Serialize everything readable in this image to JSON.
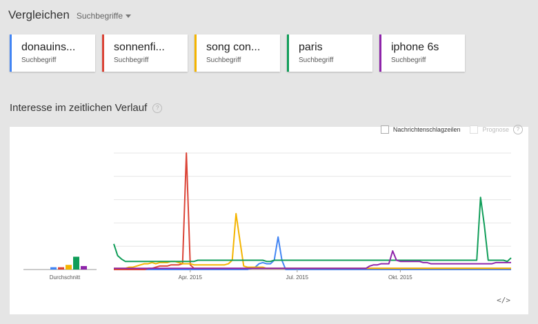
{
  "header": {
    "title": "Vergleichen",
    "dropdown_label": "Suchbegriffe"
  },
  "terms": [
    {
      "label": "donauins...",
      "sub": "Suchbegriff",
      "color": "#4285f4"
    },
    {
      "label": "sonnenfi...",
      "sub": "Suchbegriff",
      "color": "#db4437"
    },
    {
      "label": "song con...",
      "sub": "Suchbegriff",
      "color": "#f4b400"
    },
    {
      "label": "paris",
      "sub": "Suchbegriff",
      "color": "#0f9d58"
    },
    {
      "label": "iphone 6s",
      "sub": "Suchbegriff",
      "color": "#8e24aa"
    }
  ],
  "section": {
    "title": "Interesse im zeitlichen Verlauf",
    "help": "?"
  },
  "options": {
    "news": "Nachrichtenschlagzeilen",
    "forecast": "Prognose",
    "help": "?"
  },
  "embed_icon": "</>",
  "chart_data": {
    "type": "line",
    "ylim": [
      0,
      100
    ],
    "grid": true,
    "x_tick_labels": [
      {
        "label": "Apr. 2015",
        "index": 20
      },
      {
        "label": "Jul. 2015",
        "index": 48
      },
      {
        "label": "Okt. 2015",
        "index": 75
      }
    ],
    "average": {
      "label": "Durchschnitt",
      "values": [
        2,
        2,
        4,
        11,
        3
      ]
    },
    "series": [
      {
        "color": "#4285f4",
        "values": [
          0,
          0,
          0,
          0,
          0,
          0,
          0,
          0,
          0,
          0,
          0,
          0,
          0,
          0,
          0,
          0,
          0,
          0,
          0,
          0,
          0,
          0,
          0,
          0,
          0,
          0,
          0,
          0,
          0,
          0,
          0,
          0,
          0,
          0,
          0,
          0,
          1,
          2,
          5,
          6,
          5,
          5,
          8,
          28,
          8,
          0,
          0,
          0,
          0,
          0,
          0,
          0,
          0,
          0,
          0,
          0,
          0,
          0,
          0,
          0,
          0,
          0,
          0,
          0,
          0,
          0,
          0,
          0,
          0,
          0,
          0,
          0,
          0,
          0,
          0,
          0,
          0,
          0,
          0,
          0,
          0,
          0,
          0,
          0,
          0,
          0,
          0,
          0,
          0,
          0,
          0,
          0,
          0,
          0,
          0,
          0,
          0,
          0,
          0,
          0,
          0,
          0,
          0,
          0,
          0
        ]
      },
      {
        "color": "#db4437",
        "values": [
          0,
          0,
          0,
          0,
          0,
          0,
          0,
          0,
          0,
          1,
          1,
          2,
          3,
          3,
          3,
          4,
          4,
          4,
          5,
          100,
          4,
          1,
          1,
          1,
          1,
          1,
          1,
          1,
          1,
          1,
          1,
          1,
          1,
          1,
          1,
          1,
          1,
          1,
          1,
          1,
          1,
          1,
          1,
          1,
          1,
          1,
          1,
          1,
          1,
          1,
          1,
          1,
          1,
          1,
          1,
          1,
          1,
          1,
          1,
          1,
          1,
          1,
          1,
          1,
          1,
          1,
          1,
          1,
          1,
          1,
          1,
          1,
          1,
          1,
          1,
          1,
          1,
          1,
          1,
          1,
          1,
          1,
          1,
          1,
          1,
          1,
          1,
          1,
          1,
          1,
          1,
          1,
          1,
          1,
          1,
          1,
          1,
          1,
          1,
          1,
          1,
          1,
          1,
          1,
          1
        ]
      },
      {
        "color": "#f4b400",
        "values": [
          1,
          1,
          1,
          1,
          2,
          2,
          3,
          4,
          5,
          5,
          6,
          5,
          6,
          6,
          6,
          7,
          7,
          6,
          5,
          5,
          5,
          4,
          4,
          4,
          4,
          4,
          4,
          4,
          4,
          4,
          5,
          8,
          48,
          25,
          3,
          2,
          2,
          2,
          2,
          2,
          1,
          1,
          1,
          1,
          1,
          1,
          1,
          1,
          1,
          1,
          1,
          1,
          1,
          1,
          1,
          1,
          1,
          1,
          1,
          1,
          1,
          1,
          1,
          1,
          1,
          1,
          1,
          1,
          1,
          1,
          1,
          1,
          1,
          1,
          1,
          1,
          1,
          1,
          1,
          1,
          1,
          1,
          1,
          1,
          1,
          1,
          1,
          1,
          1,
          1,
          1,
          1,
          1,
          1,
          1,
          1,
          1,
          1,
          1,
          1,
          1,
          1,
          1,
          1,
          1
        ]
      },
      {
        "color": "#0f9d58",
        "values": [
          22,
          12,
          9,
          7,
          7,
          7,
          7,
          7,
          7,
          7,
          7,
          7,
          7,
          7,
          7,
          7,
          7,
          7,
          7,
          7,
          7,
          7,
          8,
          8,
          8,
          8,
          8,
          8,
          8,
          8,
          8,
          8,
          8,
          8,
          8,
          8,
          8,
          8,
          8,
          8,
          7,
          7,
          8,
          8,
          8,
          8,
          8,
          8,
          8,
          8,
          8,
          8,
          8,
          8,
          8,
          8,
          8,
          8,
          8,
          8,
          8,
          8,
          8,
          8,
          8,
          8,
          8,
          8,
          8,
          8,
          8,
          8,
          8,
          8,
          8,
          8,
          8,
          8,
          8,
          8,
          8,
          8,
          8,
          8,
          8,
          8,
          8,
          8,
          8,
          8,
          8,
          8,
          8,
          8,
          8,
          8,
          62,
          38,
          8,
          8,
          8,
          8,
          8,
          7,
          10
        ]
      },
      {
        "color": "#8e24aa",
        "values": [
          1,
          1,
          1,
          1,
          1,
          1,
          1,
          1,
          1,
          1,
          1,
          1,
          1,
          1,
          1,
          1,
          1,
          1,
          1,
          1,
          1,
          1,
          1,
          1,
          1,
          1,
          1,
          1,
          1,
          1,
          1,
          1,
          1,
          1,
          1,
          1,
          1,
          1,
          1,
          1,
          1,
          1,
          1,
          1,
          1,
          1,
          1,
          1,
          1,
          1,
          1,
          1,
          1,
          1,
          1,
          1,
          1,
          1,
          1,
          1,
          1,
          1,
          1,
          1,
          1,
          1,
          1,
          3,
          4,
          4,
          5,
          5,
          5,
          16,
          8,
          7,
          7,
          7,
          7,
          7,
          7,
          6,
          6,
          5,
          5,
          5,
          5,
          5,
          5,
          5,
          5,
          5,
          5,
          5,
          5,
          5,
          5,
          5,
          5,
          5,
          6,
          6,
          6,
          6,
          6
        ]
      }
    ]
  }
}
